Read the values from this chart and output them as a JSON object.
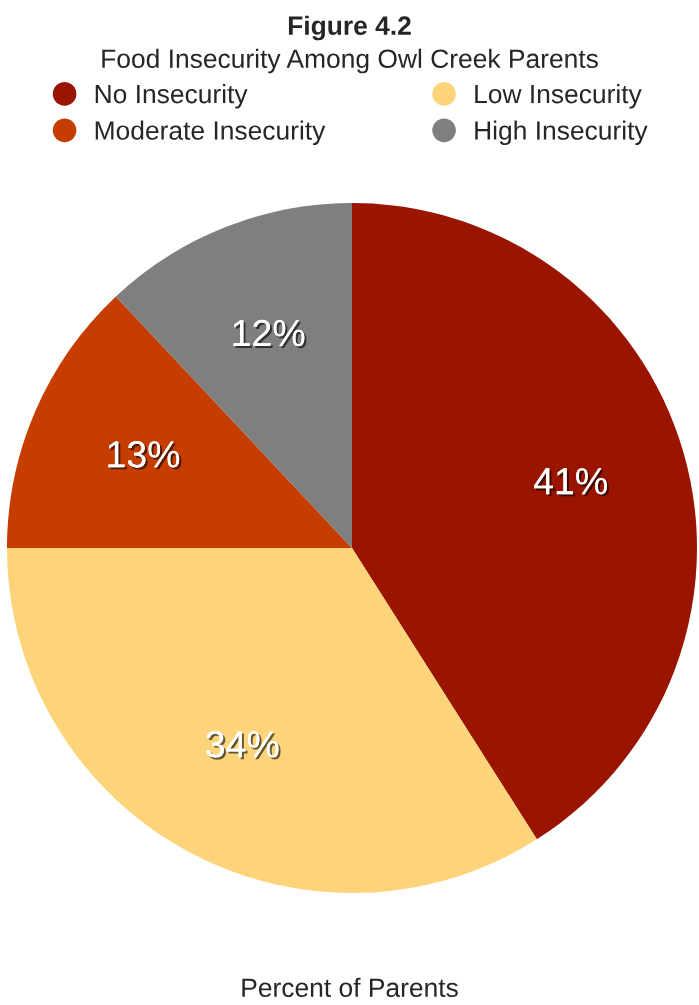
{
  "chart_data": {
    "type": "pie",
    "title": "Figure 4.2",
    "subtitle": "Food Insecurity Among Owl Creek Parents",
    "xlabel": "Percent of Parents",
    "categories": [
      "No Insecurity",
      "Low Insecurity",
      "Moderate Insecurity",
      "High Insecurity"
    ],
    "values": [
      41,
      34,
      13,
      12
    ],
    "colors": [
      "#9a1500",
      "#fed47b",
      "#c63d00",
      "#7f7f7f"
    ],
    "value_labels": [
      "41%",
      "34%",
      "13%",
      "12%"
    ],
    "legend": "top"
  }
}
